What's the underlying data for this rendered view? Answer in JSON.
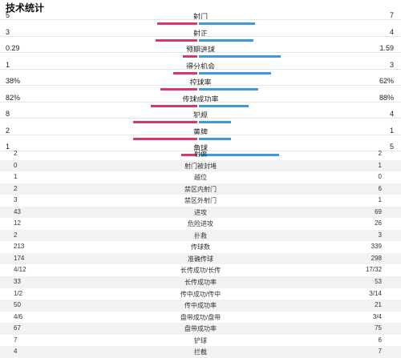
{
  "title": "技术统计",
  "colors": {
    "home": "#d63a6a",
    "away": "#3d9ae0"
  },
  "bar_stats": [
    {
      "label": "射门",
      "left": "5",
      "right": "7",
      "left_frac": 0.42,
      "right_frac": 0.58
    },
    {
      "label": "射正",
      "left": "3",
      "right": "4",
      "left_frac": 0.43,
      "right_frac": 0.57
    },
    {
      "label": "预期进球",
      "left": "0.29",
      "right": "1.59",
      "left_frac": 0.15,
      "right_frac": 0.85
    },
    {
      "label": "得分机会",
      "left": "1",
      "right": "3",
      "left_frac": 0.25,
      "right_frac": 0.75
    },
    {
      "label": "控球率",
      "left": "38%",
      "right": "62%",
      "left_frac": 0.38,
      "right_frac": 0.62
    },
    {
      "label": "传球成功率",
      "left": "82%",
      "right": "88%",
      "left_frac": 0.48,
      "right_frac": 0.52
    },
    {
      "label": "犯规",
      "left": "8",
      "right": "4",
      "left_frac": 0.67,
      "right_frac": 0.33
    },
    {
      "label": "黄牌",
      "left": "2",
      "right": "1",
      "left_frac": 0.67,
      "right_frac": 0.33
    },
    {
      "label": "角球",
      "left": "1",
      "right": "5",
      "left_frac": 0.17,
      "right_frac": 0.83
    }
  ],
  "table_stats": [
    {
      "label": "射偏",
      "left": "2",
      "right": "2"
    },
    {
      "label": "射门被封堵",
      "left": "0",
      "right": "1"
    },
    {
      "label": "越位",
      "left": "1",
      "right": "0"
    },
    {
      "label": "禁区内射门",
      "left": "2",
      "right": "6"
    },
    {
      "label": "禁区外射门",
      "left": "3",
      "right": "1"
    },
    {
      "label": "进攻",
      "left": "43",
      "right": "69"
    },
    {
      "label": "危险进攻",
      "left": "12",
      "right": "26"
    },
    {
      "label": "扑救",
      "left": "2",
      "right": "3"
    },
    {
      "label": "传球数",
      "left": "213",
      "right": "339"
    },
    {
      "label": "准确传球",
      "left": "174",
      "right": "298"
    },
    {
      "label": "长传成功/长传",
      "left": "4/12",
      "right": "17/32"
    },
    {
      "label": "长传成功率",
      "left": "33",
      "right": "53"
    },
    {
      "label": "传中成功/传中",
      "left": "1/2",
      "right": "3/14"
    },
    {
      "label": "传中成功率",
      "left": "50",
      "right": "21"
    },
    {
      "label": "盘带成功/盘带",
      "left": "4/6",
      "right": "3/4"
    },
    {
      "label": "盘带成功率",
      "left": "67",
      "right": "75"
    },
    {
      "label": "铲球",
      "left": "7",
      "right": "6"
    },
    {
      "label": "拦截",
      "left": "4",
      "right": "7"
    }
  ]
}
